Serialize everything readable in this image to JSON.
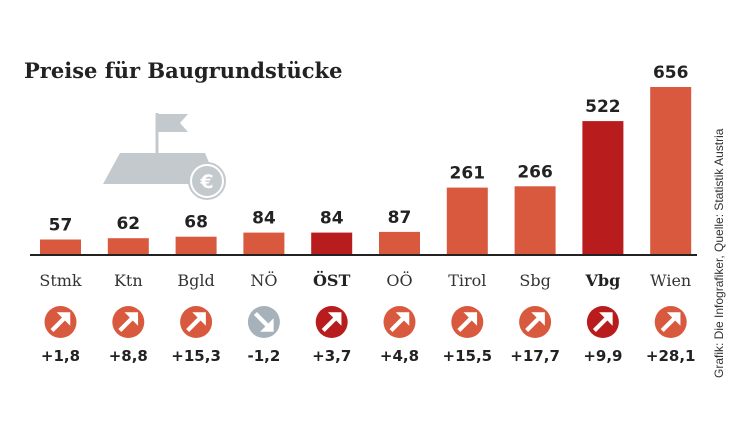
{
  "title": "Preise für Baugrundstücke",
  "source": "Grafik: Die Infografiker, Quelle: Statistik Austria",
  "colors": {
    "bar": "#d9593f",
    "bar_highlight": "#b81c1c",
    "arrow_up": "#d9593f",
    "arrow_up_highlight": "#b81c1c",
    "arrow_down": "#a6b1ba",
    "axis": "#222222",
    "icon_gray": "#c4c9ce",
    "currency_symbol": "€"
  },
  "chart_data": {
    "type": "bar",
    "categories": [
      "Stmk",
      "Ktn",
      "Bgld",
      "NÖ",
      "ÖST",
      "OÖ",
      "Tirol",
      "Sbg",
      "Vbg",
      "Wien"
    ],
    "values": [
      57,
      62,
      68,
      84,
      84,
      87,
      261,
      266,
      522,
      656
    ],
    "value_labels": [
      "57",
      "62",
      "68",
      "84",
      "84",
      "87",
      "261",
      "266",
      "522",
      "656"
    ],
    "highlighted": [
      "ÖST",
      "Vbg"
    ],
    "changes": [
      1.8,
      8.8,
      15.3,
      -1.2,
      3.7,
      4.8,
      15.5,
      17.7,
      9.9,
      28.1
    ],
    "change_labels": [
      "+1,8",
      "+8,8",
      "+15,3",
      "-1,2",
      "+3,7",
      "+4,8",
      "+15,5",
      "+17,7",
      "+9,9",
      "+28,1"
    ],
    "change_icons": [
      "arrow-up-right-icon",
      "arrow-up-right-icon",
      "arrow-up-right-icon",
      "arrow-down-right-icon",
      "arrow-up-right-icon",
      "arrow-up-right-icon",
      "arrow-up-right-icon",
      "arrow-up-right-icon",
      "arrow-up-right-icon",
      "arrow-up-right-icon"
    ],
    "ylim": [
      0,
      656
    ],
    "grid": false,
    "legend": "none"
  }
}
